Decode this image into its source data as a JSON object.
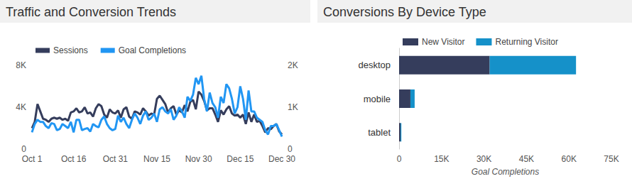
{
  "chart_data": [
    {
      "type": "line",
      "title": "Traffic and Conversion Trends",
      "categories": [
        "Oct 1",
        null,
        null,
        null,
        null,
        null,
        null,
        null,
        null,
        null,
        null,
        null,
        null,
        null,
        null,
        "Oct 16",
        null,
        null,
        null,
        null,
        null,
        null,
        null,
        null,
        null,
        null,
        null,
        null,
        null,
        null,
        "Oct 31",
        null,
        null,
        null,
        null,
        null,
        null,
        null,
        null,
        null,
        null,
        null,
        null,
        null,
        null,
        "Nov 15",
        null,
        null,
        null,
        null,
        null,
        null,
        null,
        null,
        null,
        null,
        null,
        null,
        null,
        null,
        "Nov 30",
        null,
        null,
        null,
        null,
        null,
        null,
        null,
        null,
        null,
        null,
        null,
        null,
        null,
        null,
        "Dec 15",
        null,
        null,
        null,
        null,
        null,
        null,
        null,
        null,
        null,
        null,
        null,
        null,
        null,
        null,
        "Dec 30"
      ],
      "series": [
        {
          "name": "Sessions",
          "color": "#353d5c",
          "values": [
            2000,
            2600,
            4300,
            3600,
            2900,
            2800,
            2600,
            2900,
            3000,
            2900,
            3000,
            2800,
            2900,
            2700,
            3500,
            3600,
            3900,
            3500,
            3600,
            4000,
            3400,
            3500,
            3100,
            3900,
            4300,
            4100,
            3300,
            3000,
            3800,
            3500,
            3400,
            3700,
            3000,
            3800,
            4000,
            3100,
            2900,
            3600,
            3500,
            3300,
            3900,
            3600,
            3200,
            3400,
            3300,
            4800,
            5100,
            4700,
            4300,
            3500,
            3900,
            4100,
            3300,
            3700,
            3500,
            4200,
            3600,
            4500,
            4700,
            3800,
            5500,
            5200,
            4600,
            3700,
            3900,
            3900,
            3300,
            2600,
            3700,
            3300,
            3800,
            4100,
            3400,
            3200,
            3300,
            3000,
            3300,
            2400,
            3500,
            2600,
            3300,
            2600,
            2700,
            2200,
            1600,
            2000,
            1900,
            2200,
            2400,
            1700,
            1400
          ]
        },
        {
          "name": "Goal Completions",
          "color": "#2196f3",
          "axis": "y2",
          "values": [
            400,
            600,
            700,
            650,
            650,
            550,
            500,
            620,
            600,
            450,
            480,
            600,
            550,
            500,
            650,
            400,
            700,
            700,
            450,
            480,
            500,
            420,
            600,
            550,
            520,
            700,
            780,
            600,
            500,
            450,
            480,
            800,
            650,
            750,
            600,
            500,
            700,
            850,
            750,
            600,
            800,
            900,
            700,
            750,
            850,
            650,
            950,
            1000,
            900,
            850,
            950,
            700,
            800,
            1000,
            900,
            750,
            1250,
            1150,
            1300,
            1700,
            1550,
            1750,
            1200,
            900,
            1350,
            1100,
            1000,
            750,
            1250,
            1100,
            1550,
            1450,
            1200,
            850,
            1000,
            1500,
            1200,
            700,
            1400,
            900,
            900,
            750,
            700,
            650,
            450,
            350,
            550,
            550,
            600,
            450,
            300
          ]
        }
      ],
      "ylim": [
        0,
        8000
      ],
      "yticks": [
        0,
        {
          "value": 4000,
          "label": "4K"
        },
        {
          "value": 8000,
          "label": "8K"
        }
      ],
      "y2lim": [
        0,
        2000
      ],
      "y2ticks": [
        0,
        {
          "value": 1000,
          "label": "1K"
        },
        {
          "value": 2000,
          "label": "2K"
        }
      ],
      "grid": false,
      "legend": "top-left"
    },
    {
      "type": "bar",
      "title": "Conversions By Device Type",
      "orientation": "horizontal",
      "stacked": true,
      "categories": [
        "desktop",
        "mobile",
        "tablet"
      ],
      "series": [
        {
          "name": "New Visitor",
          "color": "#353d5c",
          "values": [
            32000,
            4000,
            500
          ]
        },
        {
          "name": "Returning Visitor",
          "color": "#1591c9",
          "values": [
            30500,
            1500,
            300
          ]
        }
      ],
      "xlabel": "Goal Completions",
      "xlim": [
        0,
        75000
      ],
      "xticks": [
        0,
        {
          "value": 15000,
          "label": "15K"
        },
        {
          "value": 30000,
          "label": "30K"
        },
        {
          "value": 45000,
          "label": "45K"
        },
        {
          "value": 60000,
          "label": "60K"
        },
        {
          "value": 75000,
          "label": "75K"
        }
      ],
      "grid": false,
      "legend": "top-left"
    }
  ]
}
